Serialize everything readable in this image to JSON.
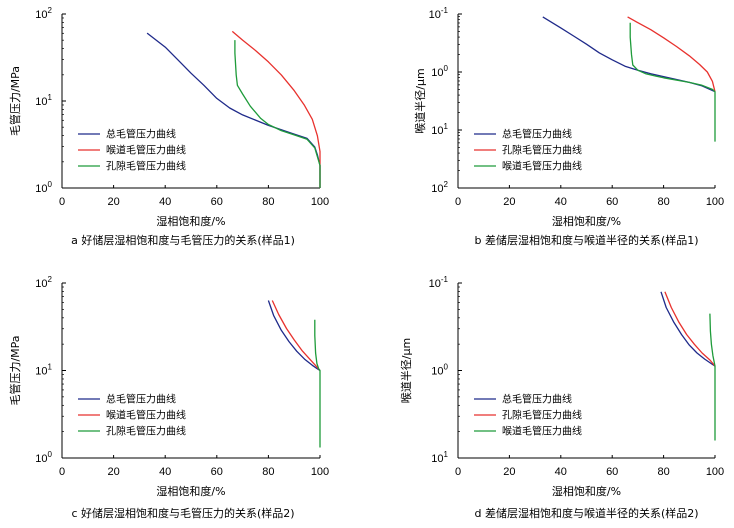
{
  "chart_data": [
    {
      "id": "a",
      "type": "line",
      "caption": "a 好储层湿相饱和度与毛管压力的关系(样品1)",
      "xlabel": "湿相饱和度/%",
      "ylabel": "毛管压力/MPa",
      "xlim": [
        0,
        100
      ],
      "xticks": [
        "0",
        "20",
        "40",
        "60",
        "80",
        "100"
      ],
      "ylim": [
        0,
        2
      ],
      "yticks": [
        {
          "value": 2,
          "base": "10",
          "exp": "2"
        },
        {
          "value": 1,
          "base": "10",
          "exp": "1"
        },
        {
          "value": 0,
          "base": "10",
          "exp": "0"
        }
      ],
      "legend": "center-left",
      "series": [
        {
          "name": "总毛管压力曲线",
          "color": "#1f2a8a",
          "points": [
            [
              33,
              1.78
            ],
            [
              40,
              1.62
            ],
            [
              45,
              1.47
            ],
            [
              50,
              1.32
            ],
            [
              55,
              1.18
            ],
            [
              60,
              1.03
            ],
            [
              65,
              0.92
            ],
            [
              70,
              0.84
            ],
            [
              75,
              0.78
            ],
            [
              80,
              0.72
            ],
            [
              85,
              0.67
            ],
            [
              90,
              0.62
            ],
            [
              95,
              0.57
            ],
            [
              98,
              0.47
            ],
            [
              99,
              0.38
            ],
            [
              100,
              0.26
            ],
            [
              100,
              0.0
            ]
          ]
        },
        {
          "name": "喉道毛管压力曲线",
          "color": "#e8322e",
          "points": [
            [
              66,
              1.8
            ],
            [
              70,
              1.7
            ],
            [
              75,
              1.58
            ],
            [
              80,
              1.45
            ],
            [
              85,
              1.3
            ],
            [
              90,
              1.12
            ],
            [
              94,
              0.95
            ],
            [
              97,
              0.79
            ],
            [
              99,
              0.6
            ],
            [
              100,
              0.42
            ],
            [
              100,
              0.26
            ],
            [
              100,
              0.0
            ]
          ]
        },
        {
          "name": "孔隙毛管压力曲线",
          "color": "#1e9b3a",
          "points": [
            [
              67,
              1.7
            ],
            [
              67,
              1.55
            ],
            [
              67.5,
              1.3
            ],
            [
              68,
              1.18
            ],
            [
              70,
              1.08
            ],
            [
              73,
              0.94
            ],
            [
              77,
              0.8
            ],
            [
              80,
              0.73
            ],
            [
              85,
              0.66
            ],
            [
              90,
              0.61
            ],
            [
              95,
              0.56
            ],
            [
              98,
              0.46
            ],
            [
              100,
              0.26
            ],
            [
              100,
              0.0
            ]
          ]
        }
      ]
    },
    {
      "id": "b",
      "type": "line",
      "caption": "b 差储层湿相饱和度与喉道半径的关系(样品1)",
      "xlabel": "湿相饱和度/%",
      "ylabel": "喉道半径/μm",
      "xlim": [
        0,
        100
      ],
      "xticks": [
        "0",
        "20",
        "40",
        "60",
        "80",
        "100"
      ],
      "ylim": [
        -2,
        1
      ],
      "yticks": [
        {
          "value": 1,
          "base": "10",
          "exp": "-1"
        },
        {
          "value": 0,
          "base": "10",
          "exp": "0"
        },
        {
          "value": -1,
          "base": "10",
          "exp": "1"
        },
        {
          "value": -2,
          "base": "10",
          "exp": "2"
        }
      ],
      "legend": "center-left",
      "series": [
        {
          "name": "总毛管压力曲线",
          "color": "#1f2a8a",
          "points": [
            [
              33,
              0.95
            ],
            [
              40,
              0.76
            ],
            [
              45,
              0.62
            ],
            [
              50,
              0.48
            ],
            [
              55,
              0.33
            ],
            [
              60,
              0.21
            ],
            [
              65,
              0.1
            ],
            [
              70,
              0.03
            ],
            [
              75,
              -0.03
            ],
            [
              80,
              -0.08
            ],
            [
              85,
              -0.13
            ],
            [
              90,
              -0.18
            ],
            [
              95,
              -0.24
            ],
            [
              100,
              -0.34
            ]
          ]
        },
        {
          "name": "孔隙毛管压力曲线",
          "color": "#e8322e",
          "points": [
            [
              66,
              0.95
            ],
            [
              70,
              0.85
            ],
            [
              75,
              0.73
            ],
            [
              80,
              0.59
            ],
            [
              85,
              0.44
            ],
            [
              90,
              0.28
            ],
            [
              94,
              0.13
            ],
            [
              97,
              0.0
            ],
            [
              99,
              -0.16
            ],
            [
              100,
              -0.34
            ]
          ]
        },
        {
          "name": "喉道毛管压力曲线",
          "color": "#1e9b3a",
          "points": [
            [
              67,
              0.85
            ],
            [
              67,
              0.6
            ],
            [
              67.5,
              0.3
            ],
            [
              68,
              0.12
            ],
            [
              70,
              0.03
            ],
            [
              73,
              -0.03
            ],
            [
              77,
              -0.07
            ],
            [
              80,
              -0.1
            ],
            [
              85,
              -0.14
            ],
            [
              90,
              -0.18
            ],
            [
              95,
              -0.23
            ],
            [
              99,
              -0.3
            ],
            [
              100,
              -0.34
            ],
            [
              100,
              -1.2
            ]
          ]
        }
      ]
    },
    {
      "id": "c",
      "type": "line",
      "caption": "c 好储层湿相饱和度与毛管压力的关系(样品2)",
      "xlabel": "湿相饱和度/%",
      "ylabel": "毛管压力/MPa",
      "xlim": [
        0,
        100
      ],
      "xticks": [
        "0",
        "20",
        "40",
        "60",
        "80",
        "100"
      ],
      "ylim": [
        0,
        2
      ],
      "yticks": [
        {
          "value": 2,
          "base": "10",
          "exp": "2"
        },
        {
          "value": 1,
          "base": "10",
          "exp": "1"
        },
        {
          "value": 0,
          "base": "10",
          "exp": "0"
        }
      ],
      "legend": "center-left",
      "series": [
        {
          "name": "总毛管压力曲线",
          "color": "#1f2a8a",
          "points": [
            [
              80,
              1.8
            ],
            [
              82,
              1.63
            ],
            [
              85,
              1.46
            ],
            [
              88,
              1.33
            ],
            [
              91,
              1.22
            ],
            [
              94,
              1.13
            ],
            [
              97,
              1.06
            ],
            [
              99,
              1.02
            ],
            [
              100,
              1.0
            ]
          ]
        },
        {
          "name": "喉道毛管压力曲线",
          "color": "#e8322e",
          "points": [
            [
              81.5,
              1.8
            ],
            [
              84,
              1.64
            ],
            [
              87,
              1.48
            ],
            [
              90,
              1.35
            ],
            [
              93,
              1.23
            ],
            [
              96,
              1.13
            ],
            [
              98.5,
              1.05
            ],
            [
              100,
              1.0
            ]
          ]
        },
        {
          "name": "孔隙毛管压力曲线",
          "color": "#1e9b3a",
          "points": [
            [
              98,
              1.58
            ],
            [
              98,
              1.4
            ],
            [
              98.3,
              1.2
            ],
            [
              98.8,
              1.08
            ],
            [
              99.5,
              1.02
            ],
            [
              100,
              1.0
            ],
            [
              100,
              0.12
            ]
          ]
        }
      ]
    },
    {
      "id": "d",
      "type": "line",
      "caption": "d 差储层湿相饱和度与喉道半径的关系(样品2)",
      "xlabel": "湿相饱和度/%",
      "ylabel": "喉道半径/μm",
      "xlim": [
        0,
        100
      ],
      "xticks": [
        "0",
        "20",
        "40",
        "60",
        "80",
        "100"
      ],
      "ylim": [
        -1,
        1
      ],
      "yticks": [
        {
          "value": 1,
          "base": "10",
          "exp": "-1"
        },
        {
          "value": 0,
          "base": "10",
          "exp": "0"
        },
        {
          "value": -1,
          "base": "10",
          "exp": "1"
        }
      ],
      "legend": "center-left",
      "series": [
        {
          "name": "总毛管压力曲线",
          "color": "#1f2a8a",
          "points": [
            [
              79,
              0.9
            ],
            [
              81,
              0.72
            ],
            [
              84,
              0.55
            ],
            [
              87,
              0.41
            ],
            [
              90,
              0.29
            ],
            [
              93,
              0.2
            ],
            [
              96,
              0.13
            ],
            [
              98.5,
              0.08
            ],
            [
              100,
              0.05
            ]
          ]
        },
        {
          "name": "孔隙毛管压力曲线",
          "color": "#e8322e",
          "points": [
            [
              80.5,
              0.9
            ],
            [
              83,
              0.72
            ],
            [
              86,
              0.55
            ],
            [
              89,
              0.41
            ],
            [
              92,
              0.3
            ],
            [
              95,
              0.2
            ],
            [
              98,
              0.12
            ],
            [
              100,
              0.05
            ]
          ]
        },
        {
          "name": "喉道毛管压力曲线",
          "color": "#1e9b3a",
          "points": [
            [
              98,
              0.65
            ],
            [
              98.2,
              0.45
            ],
            [
              98.6,
              0.3
            ],
            [
              99.2,
              0.17
            ],
            [
              100,
              0.05
            ],
            [
              100,
              -0.8
            ]
          ]
        }
      ]
    }
  ]
}
